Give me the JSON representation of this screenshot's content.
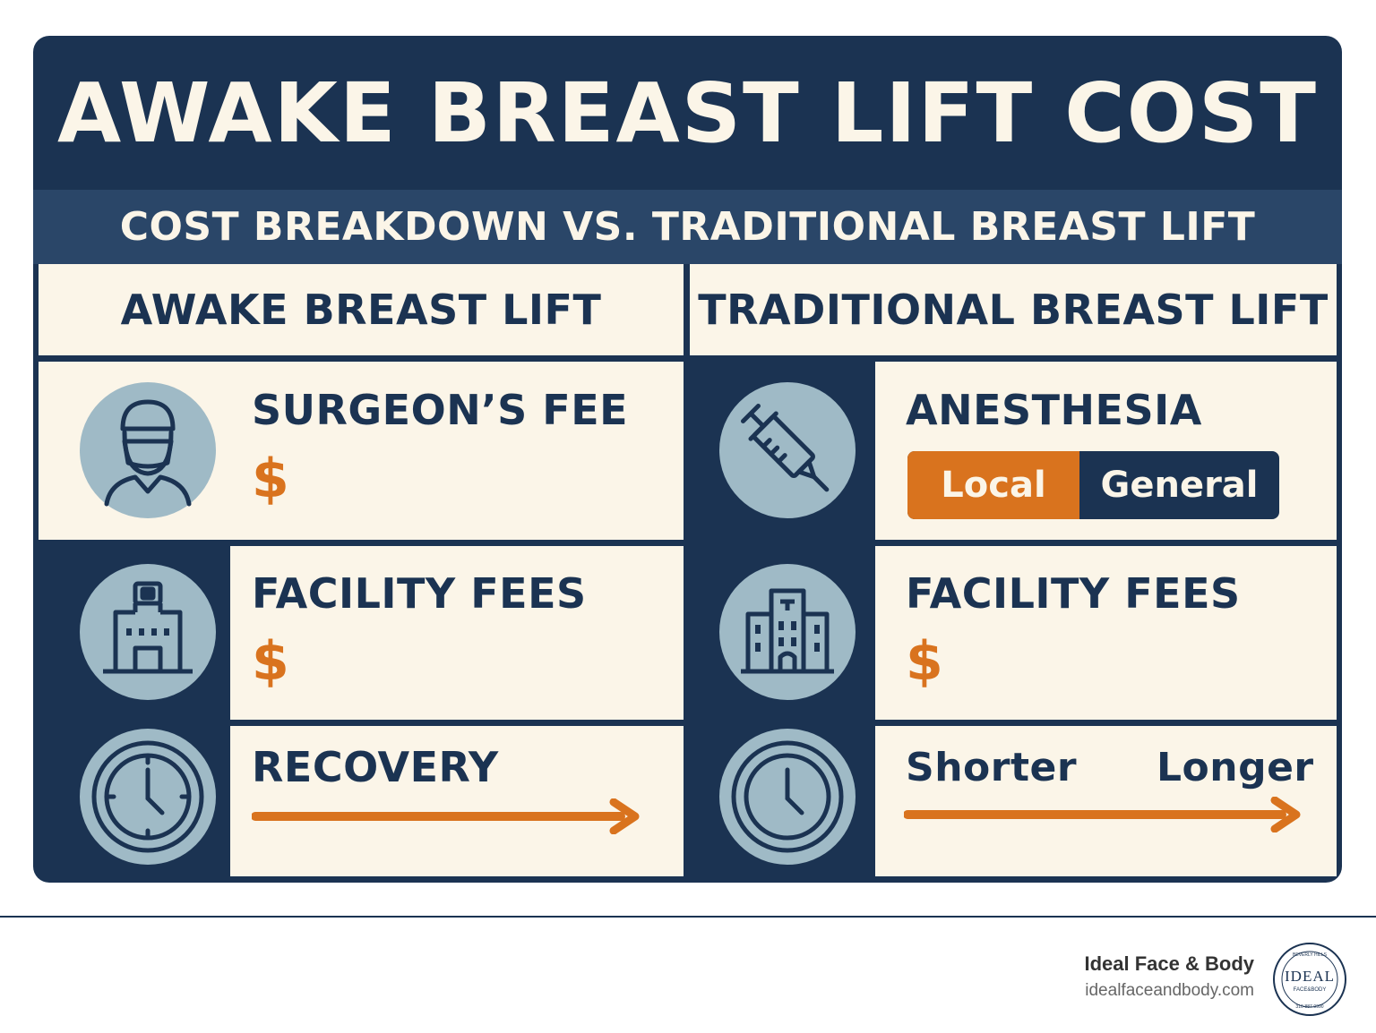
{
  "title": "AWAKE BREAST LIFT COST",
  "subtitle": "COST BREAKDOWN VS. TRADITIONAL BREAST LIFT",
  "columns": {
    "left": "AWAKE BREAST LIFT",
    "right": "TRADITIONAL BREAST LIFT"
  },
  "left_rows": [
    {
      "label": "SURGEON’S FEE",
      "value": "$",
      "icon": "surgeon-icon"
    },
    {
      "label": "FACILITY FEES",
      "value": "$",
      "icon": "building-icon"
    },
    {
      "label": "RECOVERY",
      "icon": "clock-icon"
    }
  ],
  "right_rows": [
    {
      "label": "ANESTHESIA",
      "icon": "syringe-icon",
      "options": [
        "Local",
        "General"
      ],
      "selected": "Local"
    },
    {
      "label": "FACILITY FEES",
      "value": "$",
      "icon": "building-icon"
    },
    {
      "scale_start": "Shorter",
      "scale_end": "Longer",
      "icon": "clock-icon"
    }
  ],
  "footer": {
    "brand": "Ideal Face & Body",
    "url": "idealfaceandbody.com",
    "logo_text": "IDEAL",
    "logo_subtext": "FACE&BODY",
    "logo_ring_top": "BEVERLY HILLS",
    "logo_ring_bottom": "310-887-9990"
  },
  "colors": {
    "navy": "#1b3352",
    "orange": "#d9731e",
    "cream": "#fbf5e8",
    "icon_bg": "#9fbac6"
  }
}
